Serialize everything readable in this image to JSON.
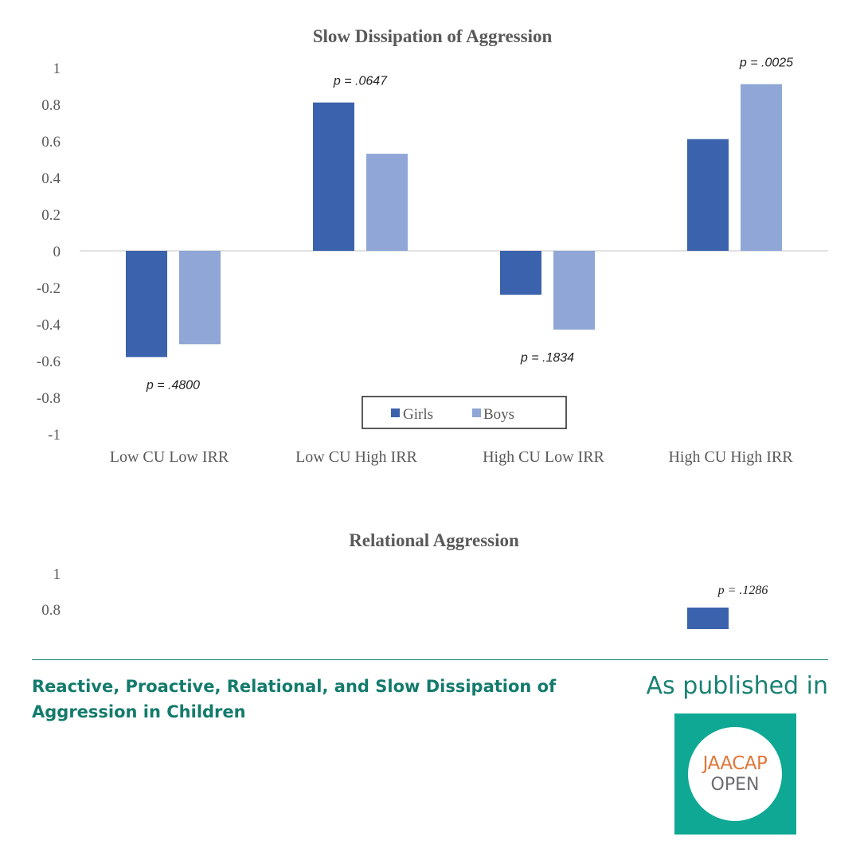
{
  "chart_data": [
    {
      "type": "bar",
      "title": "Slow Dissipation of Aggression",
      "categories": [
        "Low CU Low IRR",
        "Low CU High IRR",
        "High CU Low IRR",
        "High CU High IRR"
      ],
      "series": [
        {
          "name": "Girls",
          "values": [
            -0.58,
            0.81,
            -0.24,
            0.61
          ],
          "color": "#3a62ad"
        },
        {
          "name": "Boys",
          "values": [
            -0.51,
            0.53,
            -0.43,
            0.91
          ],
          "color": "#8fa6d6"
        }
      ],
      "ylim": [
        -1,
        1
      ],
      "y_ticks": [
        "1",
        "0.8",
        "0.6",
        "0.4",
        "0.2",
        "0",
        "-0.2",
        "-0.4",
        "-0.6",
        "-0.8",
        "-1"
      ],
      "annotations": [
        "p = .4800",
        "p = .0647",
        "p = .1834",
        "p = .0025"
      ],
      "legend_position": "bottom-center",
      "grid": false
    },
    {
      "type": "bar",
      "title": "Relational Aggression",
      "partially_visible": true,
      "y_ticks": [
        "1",
        "0.8"
      ],
      "series": [
        {
          "name": "Girls",
          "color": "#3a62ad"
        }
      ],
      "annotations": [
        "p = .1286"
      ],
      "grid": false
    }
  ],
  "caption": {
    "title": "Reactive, Proactive, Relational, and Slow Dissipation of Aggression in Children",
    "published_in": "As published in",
    "journal_top": "JAACAP",
    "journal_bottom": "OPEN"
  }
}
